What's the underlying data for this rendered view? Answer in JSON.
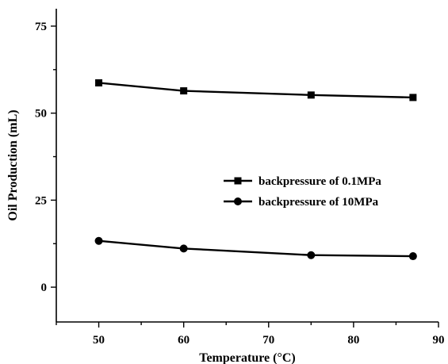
{
  "chart_data": {
    "type": "line",
    "title": "",
    "xlabel": "Temperature (°C)",
    "ylabel": "Oil Production (mL)",
    "xlim": [
      45,
      90
    ],
    "ylim": [
      -10,
      80
    ],
    "xticks": [
      50,
      60,
      70,
      80,
      90
    ],
    "yticks": [
      0,
      25,
      50,
      75
    ],
    "grid": false,
    "legend_position": "center-right",
    "colors": {
      "line": "#000000",
      "axis": "#000000"
    },
    "series": [
      {
        "name": "backpressure of 0.1MPa",
        "marker": "square",
        "x": [
          50,
          60,
          75,
          87
        ],
        "y": [
          58.7,
          56.4,
          55.2,
          54.5
        ]
      },
      {
        "name": "backpressure of 10MPa",
        "marker": "circle",
        "x": [
          50,
          60,
          75,
          87
        ],
        "y": [
          13.3,
          11.1,
          9.2,
          8.9
        ]
      }
    ]
  }
}
